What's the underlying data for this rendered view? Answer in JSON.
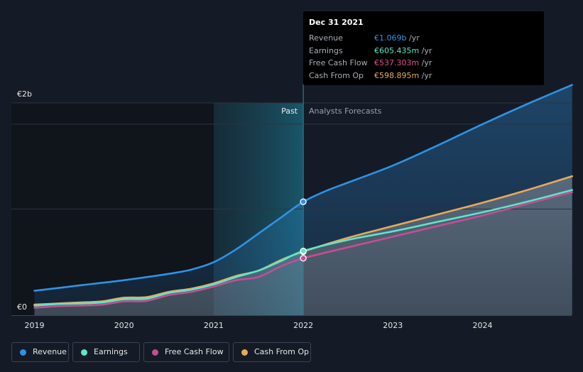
{
  "chart_data": {
    "type": "area",
    "y_axis": {
      "top_label": "€2b",
      "bottom_label": "€0",
      "ylim": [
        0,
        2.0
      ],
      "unit": "€b"
    },
    "x_axis": {
      "ticks": [
        "2019",
        "2020",
        "2021",
        "2022",
        "2023",
        "2024"
      ],
      "xlim": [
        2019,
        2025.0
      ]
    },
    "regions": {
      "past_label": "Past",
      "forecast_label": "Analysts Forecasts",
      "divider_x": 2022.0
    },
    "grid": true,
    "legend_position": "bottom-left",
    "series": [
      {
        "name": "Revenue",
        "color": "#2e93e5",
        "points": [
          [
            2019.0,
            0.23
          ],
          [
            2019.5,
            0.28
          ],
          [
            2020.0,
            0.33
          ],
          [
            2020.5,
            0.39
          ],
          [
            2020.75,
            0.43
          ],
          [
            2021.0,
            0.5
          ],
          [
            2021.25,
            0.62
          ],
          [
            2021.5,
            0.77
          ],
          [
            2021.75,
            0.92
          ],
          [
            2022.0,
            1.069
          ],
          [
            2022.25,
            1.17
          ],
          [
            2022.5,
            1.25
          ],
          [
            2023.0,
            1.41
          ],
          [
            2023.5,
            1.6
          ],
          [
            2024.0,
            1.8
          ],
          [
            2024.5,
            1.99
          ],
          [
            2025.0,
            2.17
          ]
        ]
      },
      {
        "name": "Earnings",
        "color": "#5ee5c8",
        "points": [
          [
            2019.0,
            0.09
          ],
          [
            2019.25,
            0.105
          ],
          [
            2019.5,
            0.11
          ],
          [
            2019.75,
            0.12
          ],
          [
            2020.0,
            0.15
          ],
          [
            2020.25,
            0.155
          ],
          [
            2020.5,
            0.21
          ],
          [
            2020.75,
            0.24
          ],
          [
            2021.0,
            0.29
          ],
          [
            2021.25,
            0.36
          ],
          [
            2021.5,
            0.42
          ],
          [
            2021.75,
            0.51
          ],
          [
            2022.0,
            0.605
          ],
          [
            2022.5,
            0.71
          ],
          [
            2023.0,
            0.79
          ],
          [
            2023.5,
            0.88
          ],
          [
            2024.0,
            0.97
          ],
          [
            2024.5,
            1.07
          ],
          [
            2025.0,
            1.18
          ]
        ]
      },
      {
        "name": "Free Cash Flow",
        "color": "#c44e93",
        "points": [
          [
            2019.0,
            0.07
          ],
          [
            2019.25,
            0.085
          ],
          [
            2019.5,
            0.09
          ],
          [
            2019.75,
            0.1
          ],
          [
            2020.0,
            0.13
          ],
          [
            2020.25,
            0.135
          ],
          [
            2020.5,
            0.19
          ],
          [
            2020.75,
            0.22
          ],
          [
            2021.0,
            0.27
          ],
          [
            2021.25,
            0.33
          ],
          [
            2021.5,
            0.36
          ],
          [
            2021.75,
            0.46
          ],
          [
            2022.0,
            0.537
          ],
          [
            2022.5,
            0.64
          ],
          [
            2023.0,
            0.74
          ],
          [
            2023.5,
            0.84
          ],
          [
            2024.0,
            0.94
          ],
          [
            2024.5,
            1.05
          ],
          [
            2025.0,
            1.16
          ]
        ]
      },
      {
        "name": "Cash From Op",
        "color": "#e8a95c",
        "points": [
          [
            2019.0,
            0.1
          ],
          [
            2019.25,
            0.11
          ],
          [
            2019.5,
            0.12
          ],
          [
            2019.75,
            0.13
          ],
          [
            2020.0,
            0.165
          ],
          [
            2020.25,
            0.17
          ],
          [
            2020.5,
            0.22
          ],
          [
            2020.75,
            0.25
          ],
          [
            2021.0,
            0.3
          ],
          [
            2021.25,
            0.37
          ],
          [
            2021.5,
            0.42
          ],
          [
            2021.75,
            0.52
          ],
          [
            2022.0,
            0.599
          ],
          [
            2022.5,
            0.73
          ],
          [
            2023.0,
            0.84
          ],
          [
            2023.5,
            0.95
          ],
          [
            2024.0,
            1.06
          ],
          [
            2024.5,
            1.18
          ],
          [
            2025.0,
            1.31
          ]
        ]
      }
    ],
    "highlight_x": 2022.0
  },
  "tooltip": {
    "date": "Dec 31 2021",
    "rows": [
      {
        "label": "Revenue",
        "value": "€1.069b",
        "unit": "/yr",
        "color": "#2e93e5"
      },
      {
        "label": "Earnings",
        "value": "€605.435m",
        "unit": "/yr",
        "color": "#5ee5c8"
      },
      {
        "label": "Free Cash Flow",
        "value": "€537.303m",
        "unit": "/yr",
        "color": "#e0508f"
      },
      {
        "label": "Cash From Op",
        "value": "€598.895m",
        "unit": "/yr",
        "color": "#e8a95c"
      }
    ]
  },
  "legend": [
    {
      "label": "Revenue",
      "color": "#2e93e5"
    },
    {
      "label": "Earnings",
      "color": "#5ee5c8"
    },
    {
      "label": "Free Cash Flow",
      "color": "#c44e93"
    },
    {
      "label": "Cash From Op",
      "color": "#e8a95c"
    }
  ]
}
